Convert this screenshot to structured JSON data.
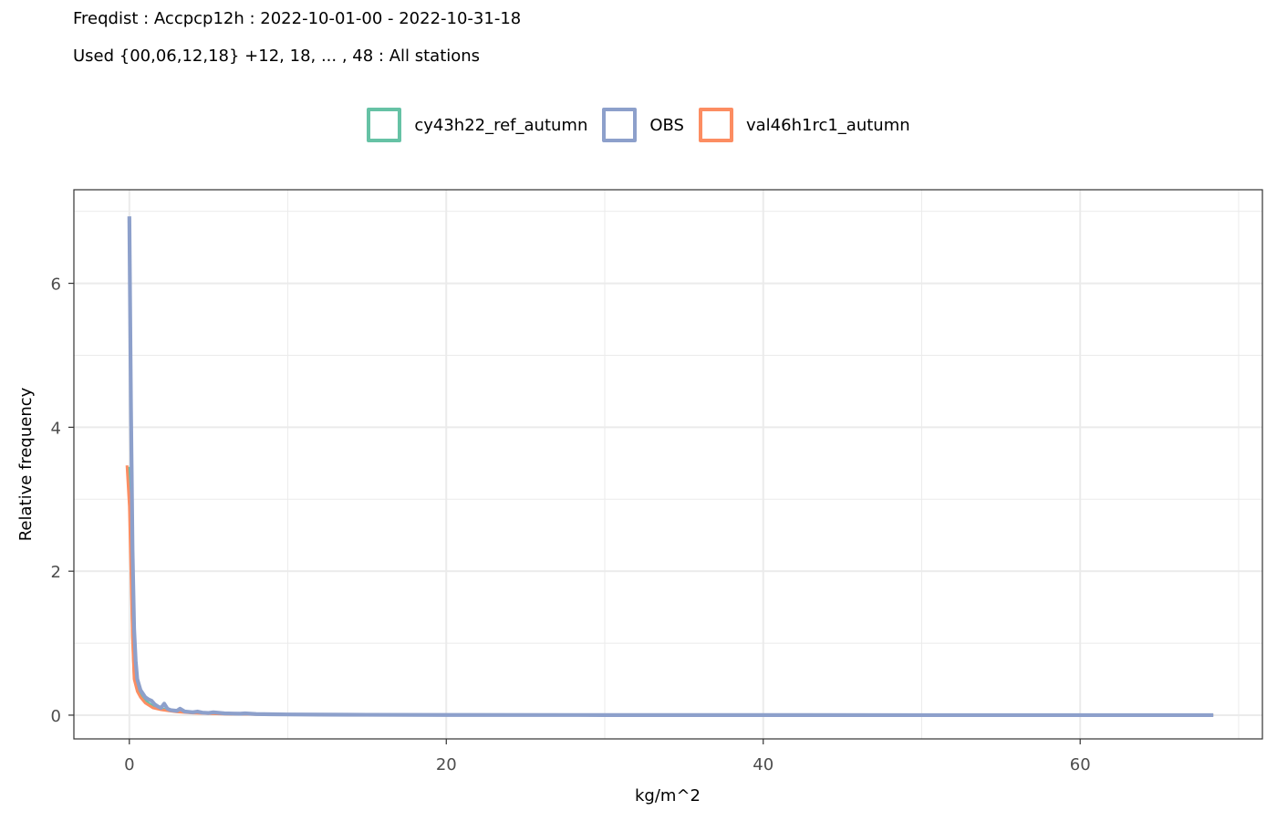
{
  "chart_data": {
    "type": "line",
    "title": "Freqdist : Accpcp12h : 2022-10-01-00 - 2022-10-31-18",
    "subtitle": "Used {00,06,12,18} +12, 18, ... , 48 : All stations",
    "xlabel": "kg/m^2",
    "ylabel": "Relative frequency",
    "xlim": [
      -3.5,
      71.5
    ],
    "ylim": [
      -0.33,
      7.3
    ],
    "x_ticks": [
      0,
      20,
      40,
      60
    ],
    "x_tick_labels": [
      "0",
      "20",
      "40",
      "60"
    ],
    "y_ticks": [
      0,
      2,
      4,
      6
    ],
    "y_tick_labels": [
      "0",
      "2",
      "4",
      "6"
    ],
    "grid": true,
    "legend_position": "top",
    "series": [
      {
        "name": "cy43h22_ref_autumn",
        "color": "#66c2a5",
        "points": [
          [
            0,
            3.45
          ],
          [
            0.1,
            2.2
          ],
          [
            0.2,
            1.1
          ],
          [
            0.3,
            0.55
          ],
          [
            0.5,
            0.38
          ],
          [
            0.7,
            0.28
          ],
          [
            1,
            0.2
          ],
          [
            1.5,
            0.12
          ],
          [
            2,
            0.09
          ],
          [
            2.5,
            0.07
          ],
          [
            3,
            0.05
          ],
          [
            4,
            0.035
          ],
          [
            5,
            0.025
          ],
          [
            6,
            0.018
          ],
          [
            8,
            0.012
          ],
          [
            10,
            0.008
          ],
          [
            15,
            0.004
          ],
          [
            20,
            0.002
          ],
          [
            30,
            0.001
          ],
          [
            40,
            0.0005
          ],
          [
            50,
            0.0002
          ],
          [
            60,
            0.0001
          ],
          [
            68.4,
            0
          ]
        ]
      },
      {
        "name": "OBS",
        "color": "#8da0cb",
        "points": [
          [
            0,
            6.93
          ],
          [
            0.1,
            4.3
          ],
          [
            0.2,
            2.3
          ],
          [
            0.3,
            1.2
          ],
          [
            0.4,
            0.75
          ],
          [
            0.5,
            0.5
          ],
          [
            0.7,
            0.35
          ],
          [
            1,
            0.25
          ],
          [
            1.2,
            0.22
          ],
          [
            1.4,
            0.2
          ],
          [
            1.6,
            0.15
          ],
          [
            1.8,
            0.12
          ],
          [
            2,
            0.1
          ],
          [
            2.2,
            0.16
          ],
          [
            2.4,
            0.09
          ],
          [
            2.6,
            0.07
          ],
          [
            3,
            0.06
          ],
          [
            3.2,
            0.09
          ],
          [
            3.5,
            0.05
          ],
          [
            4,
            0.04
          ],
          [
            4.3,
            0.05
          ],
          [
            4.6,
            0.035
          ],
          [
            5,
            0.03
          ],
          [
            5.3,
            0.04
          ],
          [
            6,
            0.025
          ],
          [
            7,
            0.02
          ],
          [
            7.3,
            0.025
          ],
          [
            8,
            0.015
          ],
          [
            9,
            0.012
          ],
          [
            10,
            0.01
          ],
          [
            12,
            0.007
          ],
          [
            15,
            0.005
          ],
          [
            20,
            0.003
          ],
          [
            30,
            0.0015
          ],
          [
            40,
            0.0008
          ],
          [
            50,
            0.0004
          ],
          [
            60,
            0.0002
          ],
          [
            68.4,
            0
          ]
        ]
      },
      {
        "name": "val46h1rc1_autumn",
        "color": "#fc8d62",
        "points": [
          [
            -0.15,
            3.47
          ],
          [
            0,
            2.9
          ],
          [
            0.1,
            2.0
          ],
          [
            0.2,
            1.05
          ],
          [
            0.3,
            0.5
          ],
          [
            0.5,
            0.33
          ],
          [
            0.7,
            0.25
          ],
          [
            1,
            0.17
          ],
          [
            1.5,
            0.1
          ],
          [
            2,
            0.075
          ],
          [
            2.5,
            0.06
          ],
          [
            3,
            0.045
          ],
          [
            4,
            0.03
          ],
          [
            5,
            0.022
          ],
          [
            6,
            0.016
          ],
          [
            8,
            0.01
          ],
          [
            10,
            0.007
          ],
          [
            15,
            0.0035
          ],
          [
            20,
            0.0018
          ],
          [
            30,
            0.0009
          ],
          [
            40,
            0.0004
          ],
          [
            50,
            0.0002
          ],
          [
            60,
            0.0001
          ],
          [
            68.4,
            0
          ]
        ]
      }
    ]
  }
}
